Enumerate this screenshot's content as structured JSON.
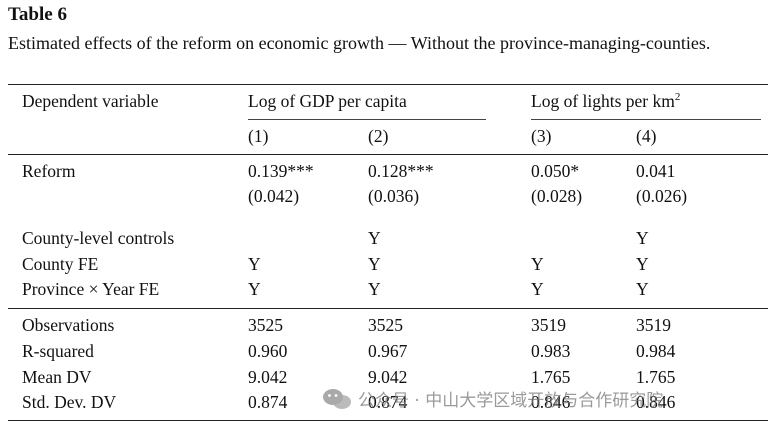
{
  "caption": {
    "label": "Table 6",
    "title": "Estimated effects of the reform on economic growth — Without the province-managing-counties."
  },
  "header": {
    "row_label": "Dependent variable",
    "group1": "Log of GDP per capita",
    "group2_text": "Log of lights per km",
    "group2_sup": "2",
    "cols": [
      "(1)",
      "(2)",
      "(3)",
      "(4)"
    ]
  },
  "rows": {
    "reform": {
      "label": "Reform",
      "coef": [
        "0.139***",
        "0.128***",
        "0.050*",
        "0.041"
      ],
      "se": [
        "(0.042)",
        "(0.036)",
        "(0.028)",
        "(0.026)"
      ]
    },
    "controls": {
      "label": "County-level controls",
      "values": [
        "",
        "Y",
        "",
        "Y"
      ]
    },
    "county_fe": {
      "label": "County FE",
      "values": [
        "Y",
        "Y",
        "Y",
        "Y"
      ]
    },
    "prov_year_fe": {
      "label": "Province × Year FE",
      "values": [
        "Y",
        "Y",
        "Y",
        "Y"
      ]
    },
    "observations": {
      "label": "Observations",
      "values": [
        "3525",
        "3525",
        "3519",
        "3519"
      ]
    },
    "r_squared": {
      "label": "R-squared",
      "values": [
        "0.960",
        "0.967",
        "0.983",
        "0.984"
      ]
    },
    "mean_dv": {
      "label": "Mean DV",
      "values": [
        "9.042",
        "9.042",
        "1.765",
        "1.765"
      ]
    },
    "std_dv": {
      "label": "Std. Dev. DV",
      "values": [
        "0.874",
        "0.874",
        "0.846",
        "0.846"
      ]
    }
  },
  "watermark": {
    "text": "公众号 · 中山大学区域开放与合作研究院",
    "icon": "wechat-icon"
  }
}
